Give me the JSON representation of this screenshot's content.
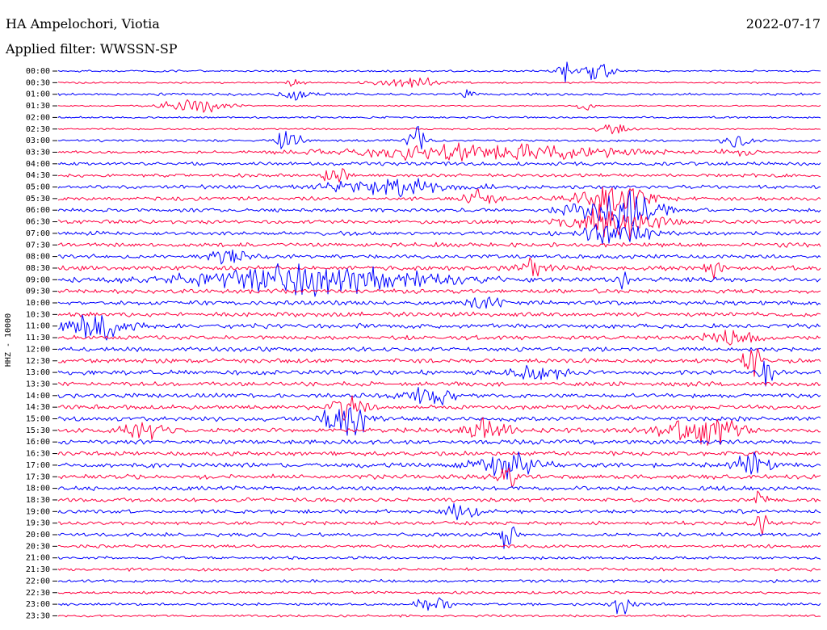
{
  "header": {
    "station": "HA Ampelochori, Viotia",
    "date": "2022-07-17",
    "filter": "Applied filter: WWSSN-SP"
  },
  "chart_data": {
    "type": "line",
    "ylabel": "HHZ - 10000",
    "row_interval_minutes": 30,
    "colors": [
      "#0000ff",
      "#ff0040"
    ],
    "trace_time_labels": [
      "00:00",
      "00:30",
      "01:00",
      "01:30",
      "02:00",
      "02:30",
      "03:00",
      "03:30",
      "04:00",
      "04:30",
      "05:00",
      "05:30",
      "06:00",
      "06:30",
      "07:00",
      "07:30",
      "08:00",
      "08:30",
      "09:00",
      "09:30",
      "10:00",
      "10:30",
      "11:00",
      "11:30",
      "12:00",
      "12:30",
      "13:00",
      "13:30",
      "14:00",
      "14:30",
      "15:00",
      "15:30",
      "16:00",
      "16:30",
      "17:00",
      "17:30",
      "18:00",
      "18:30",
      "19:00",
      "19:30",
      "20:00",
      "20:30",
      "21:00",
      "21:30",
      "22:00",
      "22:30",
      "23:00",
      "23:30"
    ],
    "background_noise": [
      1.2,
      1.0,
      1.6,
      0.8,
      1.2,
      1.0,
      1.4,
      1.6,
      2.2,
      2.0,
      2.4,
      2.3,
      2.2,
      2.4,
      2.3,
      2.6,
      2.5,
      2.8,
      2.8,
      2.6,
      2.7,
      2.7,
      2.8,
      2.6,
      2.6,
      2.7,
      2.8,
      2.8,
      2.7,
      2.7,
      2.8,
      2.8,
      2.8,
      2.7,
      2.8,
      2.8,
      2.6,
      2.4,
      2.3,
      2.2,
      2.2,
      2.0,
      1.8,
      1.8,
      1.8,
      1.6,
      1.6,
      1.4
    ],
    "events": [
      {
        "row": 0,
        "at": 0.665,
        "amp": 15,
        "dur": 0.012
      },
      {
        "row": 0,
        "at": 0.7,
        "amp": 14,
        "dur": 0.01
      },
      {
        "row": 0,
        "at": 0.72,
        "amp": 10,
        "dur": 0.01
      },
      {
        "row": 1,
        "at": 0.46,
        "amp": 7,
        "dur": 0.04
      },
      {
        "row": 1,
        "at": 0.31,
        "amp": 5,
        "dur": 0.01
      },
      {
        "row": 2,
        "at": 0.315,
        "amp": 6,
        "dur": 0.02
      },
      {
        "row": 2,
        "at": 0.54,
        "amp": 4,
        "dur": 0.015
      },
      {
        "row": 3,
        "at": 0.18,
        "amp": 9,
        "dur": 0.04
      },
      {
        "row": 3,
        "at": 0.69,
        "amp": 6,
        "dur": 0.01
      },
      {
        "row": 5,
        "at": 0.73,
        "amp": 8,
        "dur": 0.02
      },
      {
        "row": 6,
        "at": 0.3,
        "amp": 11,
        "dur": 0.02
      },
      {
        "row": 6,
        "at": 0.47,
        "amp": 16,
        "dur": 0.012
      },
      {
        "row": 6,
        "at": 0.89,
        "amp": 8,
        "dur": 0.02
      },
      {
        "row": 7,
        "at": 0.56,
        "amp": 12,
        "dur": 0.16
      },
      {
        "row": 7,
        "at": 0.89,
        "amp": 6,
        "dur": 0.02
      },
      {
        "row": 9,
        "at": 0.36,
        "amp": 10,
        "dur": 0.02
      },
      {
        "row": 10,
        "at": 0.44,
        "amp": 10,
        "dur": 0.08
      },
      {
        "row": 11,
        "at": 0.55,
        "amp": 9,
        "dur": 0.02
      },
      {
        "row": 11,
        "at": 0.73,
        "amp": 20,
        "dur": 0.045
      },
      {
        "row": 12,
        "at": 0.73,
        "amp": 26,
        "dur": 0.05
      },
      {
        "row": 13,
        "at": 0.73,
        "amp": 22,
        "dur": 0.05
      },
      {
        "row": 14,
        "at": 0.73,
        "amp": 16,
        "dur": 0.04
      },
      {
        "row": 16,
        "at": 0.23,
        "amp": 10,
        "dur": 0.03
      },
      {
        "row": 17,
        "at": 0.62,
        "amp": 10,
        "dur": 0.02
      },
      {
        "row": 17,
        "at": 0.86,
        "amp": 10,
        "dur": 0.01
      },
      {
        "row": 18,
        "at": 0.34,
        "amp": 16,
        "dur": 0.16
      },
      {
        "row": 18,
        "at": 0.74,
        "amp": 10,
        "dur": 0.01
      },
      {
        "row": 20,
        "at": 0.56,
        "amp": 8,
        "dur": 0.02
      },
      {
        "row": 22,
        "at": 0.05,
        "amp": 14,
        "dur": 0.04
      },
      {
        "row": 23,
        "at": 0.88,
        "amp": 8,
        "dur": 0.04
      },
      {
        "row": 25,
        "at": 0.91,
        "amp": 20,
        "dur": 0.01
      },
      {
        "row": 26,
        "at": 0.63,
        "amp": 12,
        "dur": 0.03
      },
      {
        "row": 26,
        "at": 0.93,
        "amp": 14,
        "dur": 0.01
      },
      {
        "row": 28,
        "at": 0.49,
        "amp": 10,
        "dur": 0.03
      },
      {
        "row": 29,
        "at": 0.38,
        "amp": 16,
        "dur": 0.02
      },
      {
        "row": 30,
        "at": 0.38,
        "amp": 20,
        "dur": 0.03
      },
      {
        "row": 31,
        "at": 0.11,
        "amp": 10,
        "dur": 0.03
      },
      {
        "row": 31,
        "at": 0.56,
        "amp": 12,
        "dur": 0.03
      },
      {
        "row": 31,
        "at": 0.82,
        "amp": 12,
        "dur": 0.04
      },
      {
        "row": 31,
        "at": 0.87,
        "amp": 14,
        "dur": 0.03
      },
      {
        "row": 34,
        "at": 0.59,
        "amp": 16,
        "dur": 0.04
      },
      {
        "row": 34,
        "at": 0.91,
        "amp": 14,
        "dur": 0.02
      },
      {
        "row": 35,
        "at": 0.59,
        "amp": 20,
        "dur": 0.01
      },
      {
        "row": 37,
        "at": 0.92,
        "amp": 14,
        "dur": 0.01
      },
      {
        "row": 38,
        "at": 0.53,
        "amp": 10,
        "dur": 0.02
      },
      {
        "row": 39,
        "at": 0.92,
        "amp": 16,
        "dur": 0.01
      },
      {
        "row": 40,
        "at": 0.59,
        "amp": 18,
        "dur": 0.01
      },
      {
        "row": 46,
        "at": 0.49,
        "amp": 10,
        "dur": 0.02
      },
      {
        "row": 46,
        "at": 0.74,
        "amp": 16,
        "dur": 0.01
      }
    ]
  }
}
